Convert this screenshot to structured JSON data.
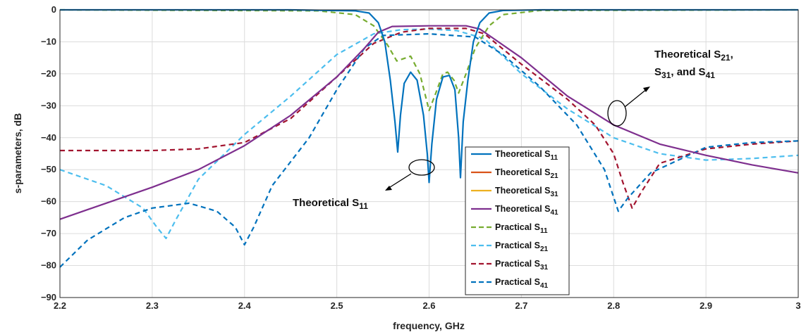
{
  "chart_data": {
    "type": "line",
    "xlabel": "frequency, GHz",
    "ylabel": "s-parameters, dB",
    "xlim": [
      2.2,
      3.0
    ],
    "ylim": [
      -90,
      0
    ],
    "xticks": [
      2.2,
      2.3,
      2.4,
      2.5,
      2.6,
      2.7,
      2.8,
      2.9,
      3.0
    ],
    "xtick_labels": [
      "2.2",
      "2.3",
      "2.4",
      "2.5",
      "2.6",
      "2.7",
      "2.8",
      "2.9",
      "3"
    ],
    "yticks": [
      0,
      -10,
      -20,
      -30,
      -40,
      -50,
      -60,
      -70,
      -80,
      -90
    ],
    "ytick_labels": [
      "0",
      "−10",
      "−20",
      "−30",
      "−40",
      "−50",
      "−60",
      "−70",
      "−80",
      "−90"
    ],
    "grid": true,
    "legend_position": "center-right",
    "series": [
      {
        "name": "Theoretical S11",
        "label_main": "Theoretical S",
        "label_sub": "11",
        "color": "#0072BD",
        "dash": "solid",
        "points": [
          [
            2.2,
            0
          ],
          [
            2.45,
            0
          ],
          [
            2.52,
            -0.3
          ],
          [
            2.535,
            -1
          ],
          [
            2.545,
            -4
          ],
          [
            2.552,
            -10
          ],
          [
            2.558,
            -22
          ],
          [
            2.563,
            -35
          ],
          [
            2.566,
            -44.5
          ],
          [
            2.569,
            -33
          ],
          [
            2.573,
            -23
          ],
          [
            2.58,
            -19.5
          ],
          [
            2.587,
            -22
          ],
          [
            2.594,
            -33
          ],
          [
            2.598,
            -45
          ],
          [
            2.6,
            -54
          ],
          [
            2.603,
            -42
          ],
          [
            2.608,
            -28
          ],
          [
            2.615,
            -21
          ],
          [
            2.622,
            -20.5
          ],
          [
            2.628,
            -25
          ],
          [
            2.632,
            -40
          ],
          [
            2.634,
            -52.5
          ],
          [
            2.637,
            -35
          ],
          [
            2.642,
            -22
          ],
          [
            2.648,
            -10
          ],
          [
            2.655,
            -4
          ],
          [
            2.665,
            -1
          ],
          [
            2.68,
            -0.2
          ],
          [
            2.72,
            0
          ],
          [
            3.0,
            0
          ]
        ]
      },
      {
        "name": "Theoretical S21",
        "label_main": "Theoretical S",
        "label_sub": "21",
        "color": "#D95319",
        "dash": "solid",
        "points": []
      },
      {
        "name": "Theoretical S31",
        "label_main": "Theoretical S",
        "label_sub": "31",
        "color": "#EDB120",
        "dash": "solid",
        "points": []
      },
      {
        "name": "Theoretical S41",
        "label_main": "Theoretical S",
        "label_sub": "41",
        "color": "#7E2F8E",
        "dash": "solid",
        "points": [
          [
            2.2,
            -65.5
          ],
          [
            2.25,
            -60.5
          ],
          [
            2.3,
            -55.5
          ],
          [
            2.35,
            -50
          ],
          [
            2.4,
            -42.5
          ],
          [
            2.45,
            -33
          ],
          [
            2.5,
            -21
          ],
          [
            2.53,
            -12
          ],
          [
            2.545,
            -7
          ],
          [
            2.56,
            -5.2
          ],
          [
            2.6,
            -5
          ],
          [
            2.64,
            -5
          ],
          [
            2.655,
            -6
          ],
          [
            2.67,
            -9
          ],
          [
            2.7,
            -15
          ],
          [
            2.75,
            -27
          ],
          [
            2.8,
            -36
          ],
          [
            2.85,
            -42
          ],
          [
            2.9,
            -45.5
          ],
          [
            2.95,
            -48.5
          ],
          [
            3.0,
            -51
          ]
        ]
      },
      {
        "name": "Practical S11",
        "label_main": "Practical S",
        "label_sub": "11",
        "color": "#77AC30",
        "dash": "dash",
        "points": [
          [
            2.2,
            0
          ],
          [
            2.48,
            -0.3
          ],
          [
            2.52,
            -1.5
          ],
          [
            2.54,
            -5
          ],
          [
            2.555,
            -11
          ],
          [
            2.565,
            -16
          ],
          [
            2.58,
            -14.5
          ],
          [
            2.59,
            -20
          ],
          [
            2.597,
            -28
          ],
          [
            2.6,
            -31.5
          ],
          [
            2.606,
            -27
          ],
          [
            2.615,
            -20
          ],
          [
            2.62,
            -19.5
          ],
          [
            2.627,
            -22
          ],
          [
            2.632,
            -26
          ],
          [
            2.64,
            -20
          ],
          [
            2.65,
            -12
          ],
          [
            2.665,
            -5
          ],
          [
            2.68,
            -1.5
          ],
          [
            2.72,
            -0.2
          ],
          [
            3.0,
            0
          ]
        ]
      },
      {
        "name": "Practical S21",
        "label_main": "Practical S",
        "label_sub": "21",
        "color": "#4DBEEE",
        "dash": "dash",
        "points": [
          [
            2.2,
            -50
          ],
          [
            2.25,
            -55
          ],
          [
            2.29,
            -62
          ],
          [
            2.305,
            -68
          ],
          [
            2.315,
            -71.5
          ],
          [
            2.325,
            -66
          ],
          [
            2.35,
            -53
          ],
          [
            2.4,
            -39
          ],
          [
            2.45,
            -27
          ],
          [
            2.5,
            -14
          ],
          [
            2.54,
            -7.5
          ],
          [
            2.57,
            -6.2
          ],
          [
            2.6,
            -6
          ],
          [
            2.63,
            -6.5
          ],
          [
            2.66,
            -9
          ],
          [
            2.7,
            -20
          ],
          [
            2.75,
            -31
          ],
          [
            2.8,
            -40
          ],
          [
            2.85,
            -45
          ],
          [
            2.9,
            -47
          ],
          [
            2.95,
            -46.5
          ],
          [
            3.0,
            -45.5
          ]
        ]
      },
      {
        "name": "Practical S31",
        "label_main": "Practical S",
        "label_sub": "31",
        "color": "#A2142F",
        "dash": "dash",
        "points": [
          [
            2.2,
            -44
          ],
          [
            2.3,
            -44
          ],
          [
            2.35,
            -43.5
          ],
          [
            2.4,
            -41.5
          ],
          [
            2.45,
            -34
          ],
          [
            2.5,
            -21
          ],
          [
            2.54,
            -10.5
          ],
          [
            2.57,
            -7
          ],
          [
            2.6,
            -5.8
          ],
          [
            2.64,
            -5.8
          ],
          [
            2.66,
            -7.5
          ],
          [
            2.7,
            -17
          ],
          [
            2.75,
            -28
          ],
          [
            2.78,
            -36
          ],
          [
            2.8,
            -45
          ],
          [
            2.81,
            -54
          ],
          [
            2.82,
            -62
          ],
          [
            2.83,
            -57
          ],
          [
            2.85,
            -48
          ],
          [
            2.9,
            -43.5
          ],
          [
            2.95,
            -42
          ],
          [
            3.0,
            -41
          ]
        ]
      },
      {
        "name": "Practical S41",
        "label_main": "Practical S",
        "label_sub": "41",
        "color": "#0072BD",
        "dash": "dash",
        "points": [
          [
            2.2,
            -80.5
          ],
          [
            2.23,
            -72
          ],
          [
            2.27,
            -65
          ],
          [
            2.3,
            -62
          ],
          [
            2.34,
            -60.5
          ],
          [
            2.37,
            -63
          ],
          [
            2.39,
            -68
          ],
          [
            2.4,
            -73.5
          ],
          [
            2.41,
            -68
          ],
          [
            2.43,
            -55
          ],
          [
            2.47,
            -40
          ],
          [
            2.5,
            -25
          ],
          [
            2.53,
            -12
          ],
          [
            2.55,
            -8
          ],
          [
            2.6,
            -7.5
          ],
          [
            2.65,
            -8.5
          ],
          [
            2.68,
            -14
          ],
          [
            2.72,
            -24
          ],
          [
            2.76,
            -36
          ],
          [
            2.79,
            -50
          ],
          [
            2.805,
            -63
          ],
          [
            2.815,
            -59
          ],
          [
            2.84,
            -51
          ],
          [
            2.9,
            -43
          ],
          [
            2.95,
            -41.5
          ],
          [
            3.0,
            -41
          ]
        ]
      }
    ],
    "annotations": {
      "s11": {
        "text_main": "Theoretical S",
        "text_sub": "11"
      },
      "s_group": {
        "line1_main": "Theoretical S",
        "line1_sub": "21",
        "line1_end": ",",
        "line2_s1": "S",
        "line2_sub1": "31",
        "line2_mid": ", and S",
        "line2_sub2": "41"
      }
    }
  }
}
